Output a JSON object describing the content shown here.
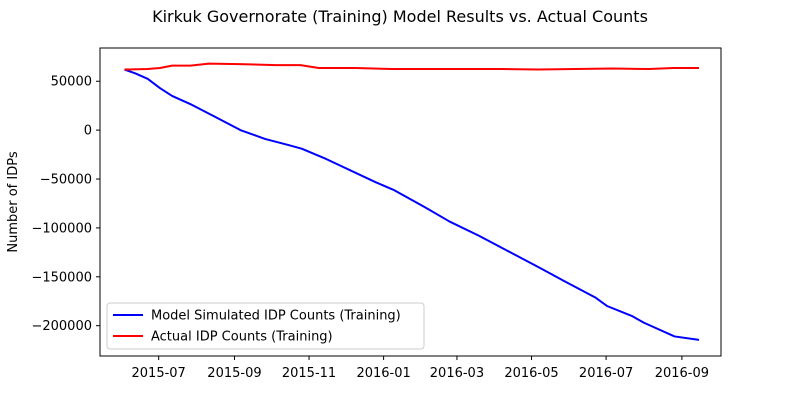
{
  "chart_data": {
    "type": "line",
    "title": "Kirkuk Governorate (Training) Model Results vs. Actual Counts",
    "xlabel": "",
    "ylabel": "Number of IDPs",
    "x_range": [
      "2015-05-14",
      "2016-10-03"
    ],
    "ylim": [
      -231000,
      84000
    ],
    "x_ticks": [
      "2015-07",
      "2015-09",
      "2015-11",
      "2016-01",
      "2016-03",
      "2016-05",
      "2016-07",
      "2016-09"
    ],
    "y_ticks": [
      50000,
      0,
      -50000,
      -100000,
      -150000,
      -200000
    ],
    "y_tick_labels": [
      "50000",
      "0",
      "−50000",
      "−100000",
      "−150000",
      "−200000"
    ],
    "grid": false,
    "legend_position": "lower-left",
    "series": [
      {
        "name": "Model Simulated IDP Counts (Training)",
        "color": "#0000ff",
        "points": [
          [
            "2015-06-03",
            62000
          ],
          [
            "2015-06-12",
            58000
          ],
          [
            "2015-06-22",
            52500
          ],
          [
            "2015-07-02",
            43000
          ],
          [
            "2015-07-12",
            35000
          ],
          [
            "2015-07-28",
            26000
          ],
          [
            "2015-08-17",
            13000
          ],
          [
            "2015-09-06",
            0
          ],
          [
            "2015-09-26",
            -9000
          ],
          [
            "2015-10-16",
            -15500
          ],
          [
            "2015-10-26",
            -19000
          ],
          [
            "2015-11-15",
            -29500
          ],
          [
            "2015-12-25",
            -53000
          ],
          [
            "2016-01-09",
            -61000
          ],
          [
            "2016-02-04",
            -79000
          ],
          [
            "2016-02-24",
            -93500
          ],
          [
            "2016-03-19",
            -108000
          ],
          [
            "2016-04-13",
            -124500
          ],
          [
            "2016-05-08",
            -141000
          ],
          [
            "2016-05-28",
            -154500
          ],
          [
            "2016-06-22",
            -171000
          ],
          [
            "2016-07-02",
            -180000
          ],
          [
            "2016-07-22",
            -190000
          ],
          [
            "2016-08-01",
            -197000
          ],
          [
            "2016-08-26",
            -211000
          ],
          [
            "2016-09-15",
            -214500
          ]
        ]
      },
      {
        "name": "Actual IDP Counts (Training)",
        "color": "#ff0000",
        "points": [
          [
            "2015-06-03",
            62000
          ],
          [
            "2015-06-22",
            62500
          ],
          [
            "2015-07-02",
            63500
          ],
          [
            "2015-07-12",
            66000
          ],
          [
            "2015-07-27",
            66000
          ],
          [
            "2015-08-11",
            68000
          ],
          [
            "2015-09-05",
            67500
          ],
          [
            "2015-10-05",
            66500
          ],
          [
            "2015-10-25",
            66500
          ],
          [
            "2015-11-09",
            63500
          ],
          [
            "2015-12-09",
            63500
          ],
          [
            "2016-01-08",
            62500
          ],
          [
            "2016-02-07",
            62500
          ],
          [
            "2016-03-08",
            62500
          ],
          [
            "2016-04-07",
            62500
          ],
          [
            "2016-05-07",
            62000
          ],
          [
            "2016-06-06",
            62500
          ],
          [
            "2016-07-06",
            63000
          ],
          [
            "2016-08-05",
            62500
          ],
          [
            "2016-08-25",
            63500
          ],
          [
            "2016-09-15",
            63500
          ]
        ]
      }
    ]
  }
}
